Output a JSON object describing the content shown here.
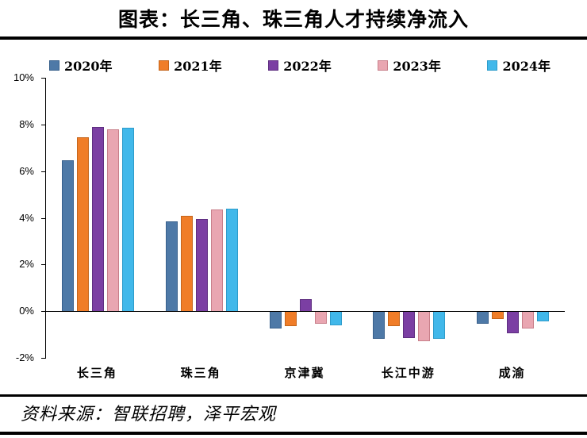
{
  "header": {
    "title": "图表：长三角、珠三角人才持续净流入"
  },
  "footer": {
    "source": "资料来源：智联招聘，泽平宏观"
  },
  "chart_data": {
    "type": "bar",
    "title": "图表：长三角、珠三角人才持续净流入",
    "xlabel": "",
    "ylabel": "",
    "ylim": [
      -2,
      10
    ],
    "yticks": [
      10,
      8,
      6,
      4,
      2,
      0,
      -2
    ],
    "ytick_suffix": "%",
    "grid": false,
    "legend_position": "top",
    "categories": [
      "长三角",
      "珠三角",
      "京津冀",
      "长江中游",
      "成渝"
    ],
    "series": [
      {
        "name": "2020年",
        "color": "#4E79A7",
        "edge": "#38608C",
        "values": [
          6.45,
          3.85,
          -0.75,
          -1.2,
          -0.55
        ]
      },
      {
        "name": "2021年",
        "color": "#F07D28",
        "edge": "#C4651C",
        "values": [
          7.45,
          4.1,
          -0.65,
          -0.65,
          -0.35
        ]
      },
      {
        "name": "2022年",
        "color": "#7B3FA3",
        "edge": "#5E2E80",
        "values": [
          7.9,
          3.95,
          0.5,
          -1.15,
          -0.95
        ]
      },
      {
        "name": "2023年",
        "color": "#E9A6B1",
        "edge": "#C87F8A",
        "values": [
          7.8,
          4.35,
          -0.55,
          -1.3,
          -0.75
        ]
      },
      {
        "name": "2024年",
        "color": "#41B8EA",
        "edge": "#2E9CCB",
        "values": [
          7.85,
          4.4,
          -0.6,
          -1.2,
          -0.45
        ]
      }
    ]
  }
}
